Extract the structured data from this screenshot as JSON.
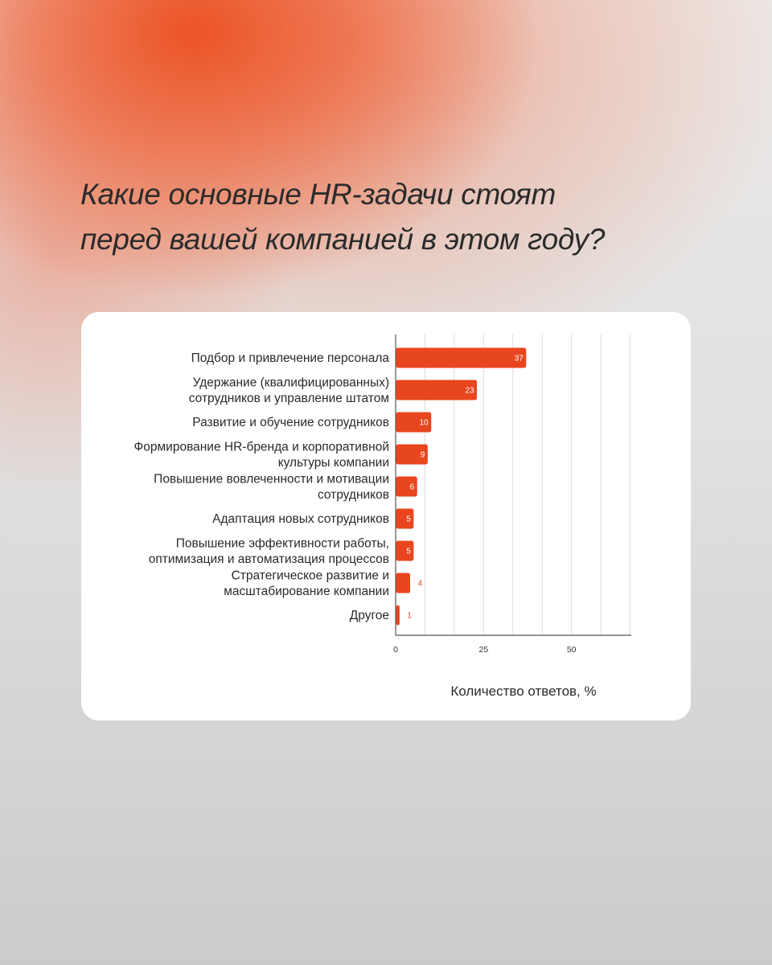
{
  "header": {
    "title_lines": [
      "Какие основные HR-задачи стоят",
      "перед вашей компанией в этом году?"
    ]
  },
  "colors": {
    "bar": "#e8461e",
    "label_inside": "#ffffff",
    "label_outside": "#e8461e",
    "grid": "#dcdcdc",
    "axis": "#555555"
  },
  "chart_data": {
    "type": "bar",
    "orientation": "horizontal",
    "categories": [
      [
        "Подбор и привлечение персонала"
      ],
      [
        "Удержание (квалифицированных)",
        "сотрудников и управление штатом"
      ],
      [
        "Развитие и обучение сотрудников"
      ],
      [
        "Формирование HR-бренда и корпоративной",
        "культуры компании"
      ],
      [
        "Повышение вовлеченности и мотивации",
        "сотрудников"
      ],
      [
        "Адаптация новых сотрудников"
      ],
      [
        "Повышение эффективности работы,",
        "оптимизация и автоматизация процессов"
      ],
      [
        "Стратегическое развитие и",
        "масштабирование компании"
      ],
      [
        "Другое"
      ]
    ],
    "values": [
      37,
      23,
      10,
      9,
      6,
      5,
      5,
      4,
      1
    ],
    "data_labels": [
      "37",
      "23",
      "10",
      "9",
      "6",
      "5",
      "5",
      "4",
      "1"
    ],
    "xlabel": "Количество ответов, %",
    "xlim": [
      0,
      67
    ],
    "xticks": [
      0,
      25,
      50
    ],
    "grid": true,
    "gridlines_step": 8.33
  }
}
